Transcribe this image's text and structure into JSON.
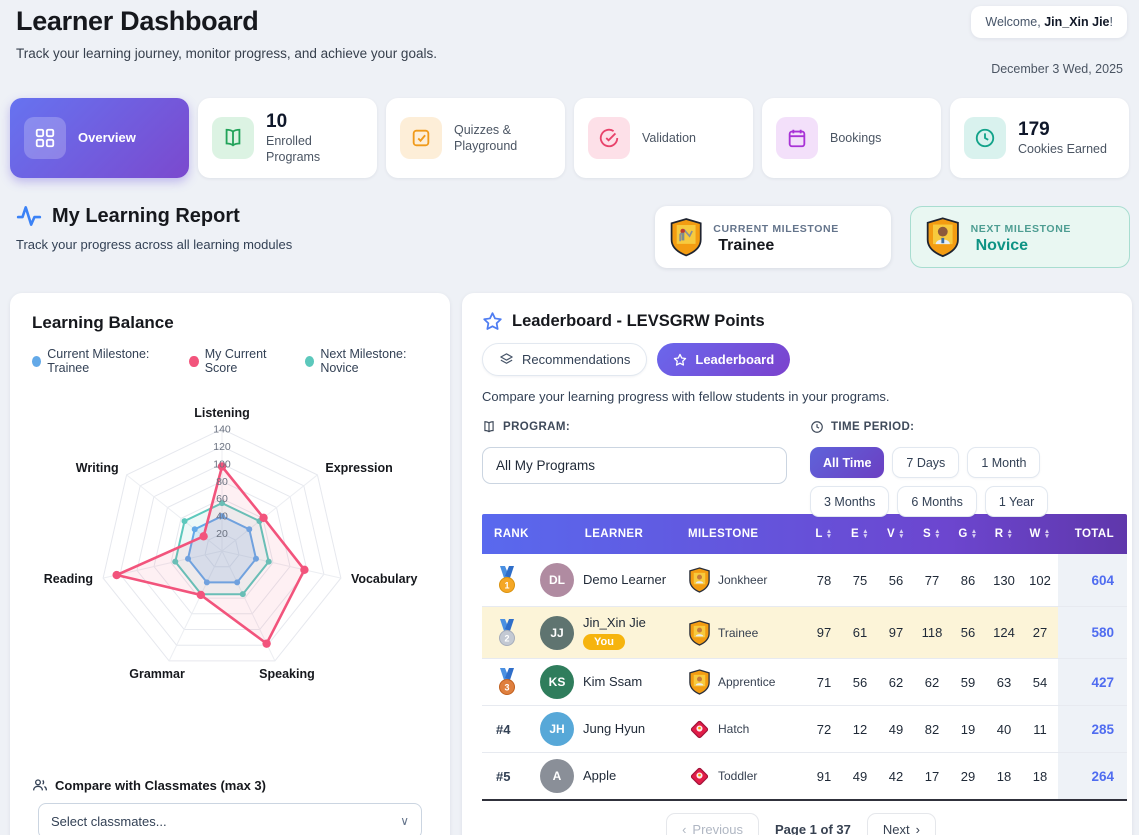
{
  "page": {
    "title": "Learner Dashboard",
    "subtitle": "Track your learning journey, monitor progress, and achieve your goals.",
    "welcome_prefix": "Welcome, ",
    "welcome_name": "Jin_Xin Jie",
    "welcome_suffix": "!",
    "date": "December 3 Wed, 2025"
  },
  "nav": {
    "overview": {
      "label": "Overview",
      "icon": "grid-icon"
    },
    "programs": {
      "value": "10",
      "label": "Enrolled Programs",
      "icon": "book-icon"
    },
    "quizzes": {
      "label": "Quizzes & Playground",
      "icon": "check-square-icon"
    },
    "validation": {
      "label": "Validation",
      "icon": "check-circle-icon"
    },
    "bookings": {
      "label": "Bookings",
      "icon": "calendar-icon"
    },
    "cookies": {
      "value": "179",
      "label": "Cookies Earned",
      "icon": "clock-icon"
    }
  },
  "report": {
    "title": "My Learning Report",
    "subtitle": "Track your progress across all learning modules",
    "current_milestone_label": "CURRENT MILESTONE",
    "current_milestone": "Trainee",
    "next_milestone_label": "NEXT MILESTONE",
    "next_milestone": "Novice"
  },
  "learning_balance": {
    "title": "Learning Balance"
  },
  "chart_data": {
    "type": "radar",
    "title": "Learning Balance",
    "categories": [
      "Listening",
      "Expression",
      "Vocabulary",
      "Speaking",
      "Grammar",
      "Reading",
      "Writing"
    ],
    "series": [
      {
        "name": "Current Milestone: Trainee",
        "color": "#63a9e8",
        "fill": "rgba(99,169,232,0.18)",
        "values": [
          40,
          40,
          40,
          40,
          40,
          40,
          40
        ]
      },
      {
        "name": "My Current Score",
        "color": "#f2547c",
        "fill": "rgba(242,84,124,0.09)",
        "values": [
          97,
          61,
          97,
          118,
          56,
          124,
          27
        ]
      },
      {
        "name": "Next Milestone: Novice",
        "color": "#5cc8bc",
        "fill": "rgba(92,200,188,0.10)",
        "values": [
          55,
          55,
          55,
          55,
          55,
          55,
          55
        ]
      }
    ],
    "rmax": 140,
    "tick_step": 20,
    "grid": true,
    "legend_position": "top"
  },
  "classmates": {
    "label": "Compare with Classmates (max 3)",
    "placeholder": "Select classmates..."
  },
  "leaderboard": {
    "title": "Leaderboard - LEVSGRW Points",
    "tab_recommendations": "Recommendations",
    "tab_leaderboard": "Leaderboard",
    "description": "Compare your learning progress with fellow students in your programs.",
    "program_label": "PROGRAM:",
    "program_value": "All My Programs",
    "time_label": "TIME PERIOD:",
    "time_options": [
      "All Time",
      "7 Days",
      "1 Month",
      "3 Months",
      "6 Months",
      "1 Year"
    ],
    "time_selected": "All Time",
    "columns": {
      "rank": "RANK",
      "learner": "LEARNER",
      "milestone": "MILESTONE",
      "scores": [
        "L",
        "E",
        "V",
        "S",
        "G",
        "R",
        "W"
      ],
      "total": "TOTAL"
    },
    "rows": [
      {
        "rank": 1,
        "rank_type": "medal",
        "name": "Demo Learner",
        "initials": "DL",
        "avatar_color": "#b08ba1",
        "milestone": "Jonkheer",
        "milestone_icon": "shield",
        "scores": [
          78,
          75,
          56,
          77,
          86,
          130,
          102
        ],
        "total": 604,
        "highlight": false
      },
      {
        "rank": 2,
        "rank_type": "medal",
        "name": "Jin_Xin Jie",
        "initials": "JJ",
        "avatar_color": "#5f7470",
        "you_label": "You",
        "milestone": "Trainee",
        "milestone_icon": "shield",
        "scores": [
          97,
          61,
          97,
          118,
          56,
          124,
          27
        ],
        "total": 580,
        "highlight": true
      },
      {
        "rank": 3,
        "rank_type": "medal",
        "name": "Kim Ssam",
        "initials": "KS",
        "avatar_color": "#2f7d5c",
        "milestone": "Apprentice",
        "milestone_icon": "shield",
        "scores": [
          71,
          56,
          62,
          62,
          59,
          63,
          54
        ],
        "total": 427,
        "highlight": false
      },
      {
        "rank": 4,
        "rank_type": "text",
        "rank_label": "#4",
        "name": "Jung Hyun",
        "initials": "JH",
        "avatar_color": "#57a8d8",
        "milestone": "Hatch",
        "milestone_icon": "diamond",
        "scores": [
          72,
          12,
          49,
          82,
          19,
          40,
          11
        ],
        "total": 285,
        "highlight": false
      },
      {
        "rank": 5,
        "rank_type": "text",
        "rank_label": "#5",
        "name": "Apple",
        "initials": "A",
        "avatar_color": "#8a8f98",
        "milestone": "Toddler",
        "milestone_icon": "diamond",
        "scores": [
          91,
          49,
          42,
          17,
          29,
          18,
          18
        ],
        "total": 264,
        "highlight": false
      }
    ],
    "pagination": {
      "previous": "Previous",
      "page": "Page 1 of 37",
      "next": "Next"
    }
  },
  "colors": {
    "accent_purple": "#6b46c1",
    "accent_indigo": "#5969ee",
    "highlight_row": "#fcf4d8",
    "total_link": "#4f6cf0",
    "you_badge": "#f6b40e",
    "medal_gold": "#f5a725",
    "medal_silver": "#c3c9d3",
    "medal_bronze": "#df7f3e"
  }
}
